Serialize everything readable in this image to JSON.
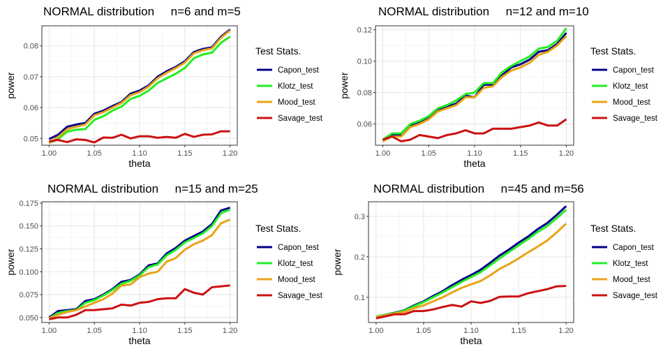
{
  "chart_data": [
    {
      "type": "line",
      "title": "NORMAL distribution     n=6 and m=5",
      "xlabel": "theta",
      "ylabel": "power",
      "xlim": [
        0.992,
        1.208
      ],
      "ylim": [
        0.0478,
        0.0865
      ],
      "x_ticks": [
        "1.00",
        "1.05",
        "1.10",
        "1.15",
        "1.20"
      ],
      "y_ticks": [
        "0.05",
        "0.06",
        "0.07",
        "0.08"
      ],
      "y_tick_values": [
        0.05,
        0.06,
        0.07,
        0.08
      ],
      "grid": true,
      "legend_title": "Test Stats.",
      "legend_position": "right",
      "x": [
        1.0,
        1.01,
        1.02,
        1.03,
        1.04,
        1.05,
        1.06,
        1.07,
        1.08,
        1.09,
        1.1,
        1.11,
        1.12,
        1.13,
        1.14,
        1.15,
        1.16,
        1.17,
        1.18,
        1.19,
        1.2
      ],
      "series": [
        {
          "name": "Capon_test",
          "color": "#00008B",
          "values": [
            0.0498,
            0.0512,
            0.0538,
            0.0545,
            0.055,
            0.058,
            0.059,
            0.0605,
            0.0618,
            0.0645,
            0.0655,
            0.0672,
            0.07,
            0.0718,
            0.0732,
            0.075,
            0.078,
            0.079,
            0.0795,
            0.083,
            0.0853
          ]
        },
        {
          "name": "Klotz_test",
          "color": "#22EE22",
          "values": [
            0.0485,
            0.0498,
            0.0522,
            0.0528,
            0.053,
            0.056,
            0.0572,
            0.059,
            0.0603,
            0.0628,
            0.0638,
            0.0655,
            0.068,
            0.0695,
            0.071,
            0.0728,
            0.076,
            0.0772,
            0.0778,
            0.081,
            0.083
          ]
        },
        {
          "name": "Mood_test",
          "color": "#E8A317",
          "values": [
            0.0485,
            0.0505,
            0.053,
            0.0538,
            0.0545,
            0.0575,
            0.0585,
            0.06,
            0.0615,
            0.064,
            0.065,
            0.0668,
            0.0695,
            0.0713,
            0.0728,
            0.0746,
            0.0776,
            0.0786,
            0.0792,
            0.0826,
            0.085
          ]
        },
        {
          "name": "Savage_test",
          "color": "#CC1111",
          "values": [
            0.049,
            0.0495,
            0.0488,
            0.0497,
            0.0495,
            0.0487,
            0.0503,
            0.0502,
            0.0512,
            0.05,
            0.0507,
            0.0507,
            0.0502,
            0.0505,
            0.0502,
            0.0515,
            0.0505,
            0.0512,
            0.0513,
            0.0523,
            0.0523
          ]
        }
      ]
    },
    {
      "type": "line",
      "title": "NORMAL distribution     n=12 and m=10",
      "xlabel": "theta",
      "ylabel": "power",
      "xlim": [
        0.992,
        1.208
      ],
      "ylim": [
        0.0465,
        0.1225
      ],
      "x_ticks": [
        "1.00",
        "1.05",
        "1.10",
        "1.15",
        "1.20"
      ],
      "y_ticks": [
        "0.06",
        "0.08",
        "0.10",
        "0.12"
      ],
      "y_tick_values": [
        0.06,
        0.08,
        0.1,
        0.12
      ],
      "grid": true,
      "legend_title": "Test Stats.",
      "legend_position": "right",
      "x": [
        1.0,
        1.01,
        1.02,
        1.03,
        1.04,
        1.05,
        1.06,
        1.07,
        1.08,
        1.09,
        1.1,
        1.11,
        1.12,
        1.13,
        1.14,
        1.15,
        1.16,
        1.17,
        1.18,
        1.19,
        1.2
      ],
      "series": [
        {
          "name": "Capon_test",
          "color": "#00008B",
          "values": [
            0.049,
            0.053,
            0.053,
            0.059,
            0.061,
            0.064,
            0.069,
            0.071,
            0.073,
            0.078,
            0.077,
            0.085,
            0.085,
            0.091,
            0.096,
            0.098,
            0.101,
            0.106,
            0.107,
            0.111,
            0.118
          ]
        },
        {
          "name": "Klotz_test",
          "color": "#22EE22",
          "values": [
            0.05,
            0.054,
            0.054,
            0.06,
            0.062,
            0.065,
            0.07,
            0.072,
            0.075,
            0.079,
            0.08,
            0.086,
            0.086,
            0.093,
            0.097,
            0.1,
            0.103,
            0.108,
            0.109,
            0.113,
            0.121
          ]
        },
        {
          "name": "Mood_test",
          "color": "#E8A317",
          "values": [
            0.049,
            0.052,
            0.052,
            0.058,
            0.06,
            0.063,
            0.068,
            0.07,
            0.072,
            0.077,
            0.077,
            0.083,
            0.084,
            0.09,
            0.094,
            0.096,
            0.099,
            0.104,
            0.106,
            0.11,
            0.116
          ]
        },
        {
          "name": "Savage_test",
          "color": "#CC1111",
          "values": [
            0.05,
            0.052,
            0.049,
            0.05,
            0.053,
            0.052,
            0.051,
            0.053,
            0.054,
            0.056,
            0.054,
            0.054,
            0.057,
            0.057,
            0.057,
            0.058,
            0.059,
            0.061,
            0.059,
            0.059,
            0.063
          ]
        }
      ]
    },
    {
      "type": "line",
      "title": "NORMAL distribution     n=15 and m=25",
      "xlabel": "theta",
      "ylabel": "power",
      "xlim": [
        0.992,
        1.208
      ],
      "ylim": [
        0.0445,
        0.1765
      ],
      "x_ticks": [
        "1.00",
        "1.05",
        "1.10",
        "1.15",
        "1.20"
      ],
      "y_ticks": [
        "0.050",
        "0.075",
        "0.100",
        "0.125",
        "0.150",
        "0.175"
      ],
      "y_tick_values": [
        0.05,
        0.075,
        0.1,
        0.125,
        0.15,
        0.175
      ],
      "grid": true,
      "legend_title": "Test Stats.",
      "legend_position": "right",
      "x": [
        1.0,
        1.01,
        1.02,
        1.03,
        1.04,
        1.05,
        1.06,
        1.07,
        1.08,
        1.09,
        1.1,
        1.11,
        1.12,
        1.13,
        1.14,
        1.15,
        1.16,
        1.17,
        1.18,
        1.19,
        1.2
      ],
      "series": [
        {
          "name": "Capon_test",
          "color": "#00008B",
          "values": [
            0.05,
            0.057,
            0.058,
            0.059,
            0.068,
            0.07,
            0.075,
            0.081,
            0.089,
            0.091,
            0.097,
            0.107,
            0.109,
            0.12,
            0.126,
            0.134,
            0.139,
            0.144,
            0.152,
            0.167,
            0.17
          ]
        },
        {
          "name": "Klotz_test",
          "color": "#22EE22",
          "values": [
            0.049,
            0.055,
            0.057,
            0.058,
            0.066,
            0.069,
            0.074,
            0.08,
            0.087,
            0.09,
            0.096,
            0.105,
            0.108,
            0.118,
            0.124,
            0.132,
            0.137,
            0.142,
            0.15,
            0.164,
            0.168
          ]
        },
        {
          "name": "Mood_test",
          "color": "#E8A317",
          "values": [
            0.049,
            0.053,
            0.056,
            0.058,
            0.062,
            0.066,
            0.07,
            0.076,
            0.085,
            0.086,
            0.094,
            0.098,
            0.1,
            0.111,
            0.115,
            0.124,
            0.13,
            0.134,
            0.14,
            0.153,
            0.157
          ]
        },
        {
          "name": "Savage_test",
          "color": "#CC1111",
          "values": [
            0.048,
            0.05,
            0.05,
            0.053,
            0.058,
            0.058,
            0.059,
            0.06,
            0.064,
            0.063,
            0.066,
            0.067,
            0.07,
            0.071,
            0.071,
            0.081,
            0.077,
            0.075,
            0.083,
            0.084,
            0.085
          ]
        }
      ]
    },
    {
      "type": "line",
      "title": "NORMAL distribution     n=45 and m=56",
      "xlabel": "theta",
      "ylabel": "power",
      "xlim": [
        0.992,
        1.208
      ],
      "ylim": [
        0.0377,
        0.336
      ],
      "x_ticks": [
        "1.00",
        "1.05",
        "1.10",
        "1.15",
        "1.20"
      ],
      "y_ticks": [
        "0.1",
        "0.2",
        "0.3"
      ],
      "y_tick_values": [
        0.1,
        0.2,
        0.3
      ],
      "grid": true,
      "legend_title": "Test Stats.",
      "legend_position": "right",
      "x": [
        1.0,
        1.01,
        1.02,
        1.03,
        1.04,
        1.05,
        1.06,
        1.07,
        1.08,
        1.09,
        1.1,
        1.11,
        1.12,
        1.13,
        1.14,
        1.15,
        1.16,
        1.17,
        1.18,
        1.19,
        1.2
      ],
      "series": [
        {
          "name": "Capon_test",
          "color": "#00008B",
          "values": [
            0.052,
            0.057,
            0.062,
            0.068,
            0.08,
            0.09,
            0.103,
            0.115,
            0.13,
            0.143,
            0.155,
            0.168,
            0.185,
            0.203,
            0.218,
            0.235,
            0.25,
            0.268,
            0.283,
            0.303,
            0.325
          ]
        },
        {
          "name": "Klotz_test",
          "color": "#22EE22",
          "values": [
            0.052,
            0.057,
            0.061,
            0.067,
            0.078,
            0.088,
            0.1,
            0.112,
            0.125,
            0.138,
            0.15,
            0.162,
            0.179,
            0.196,
            0.212,
            0.228,
            0.244,
            0.261,
            0.276,
            0.295,
            0.316
          ]
        },
        {
          "name": "Mood_test",
          "color": "#E8A317",
          "values": [
            0.051,
            0.055,
            0.06,
            0.064,
            0.073,
            0.08,
            0.09,
            0.1,
            0.112,
            0.123,
            0.132,
            0.14,
            0.154,
            0.17,
            0.182,
            0.196,
            0.211,
            0.225,
            0.24,
            0.26,
            0.282
          ]
        },
        {
          "name": "Savage_test",
          "color": "#CC1111",
          "values": [
            0.048,
            0.053,
            0.058,
            0.058,
            0.066,
            0.066,
            0.07,
            0.076,
            0.081,
            0.077,
            0.09,
            0.086,
            0.091,
            0.101,
            0.102,
            0.102,
            0.11,
            0.115,
            0.12,
            0.127,
            0.128
          ]
        }
      ]
    }
  ]
}
